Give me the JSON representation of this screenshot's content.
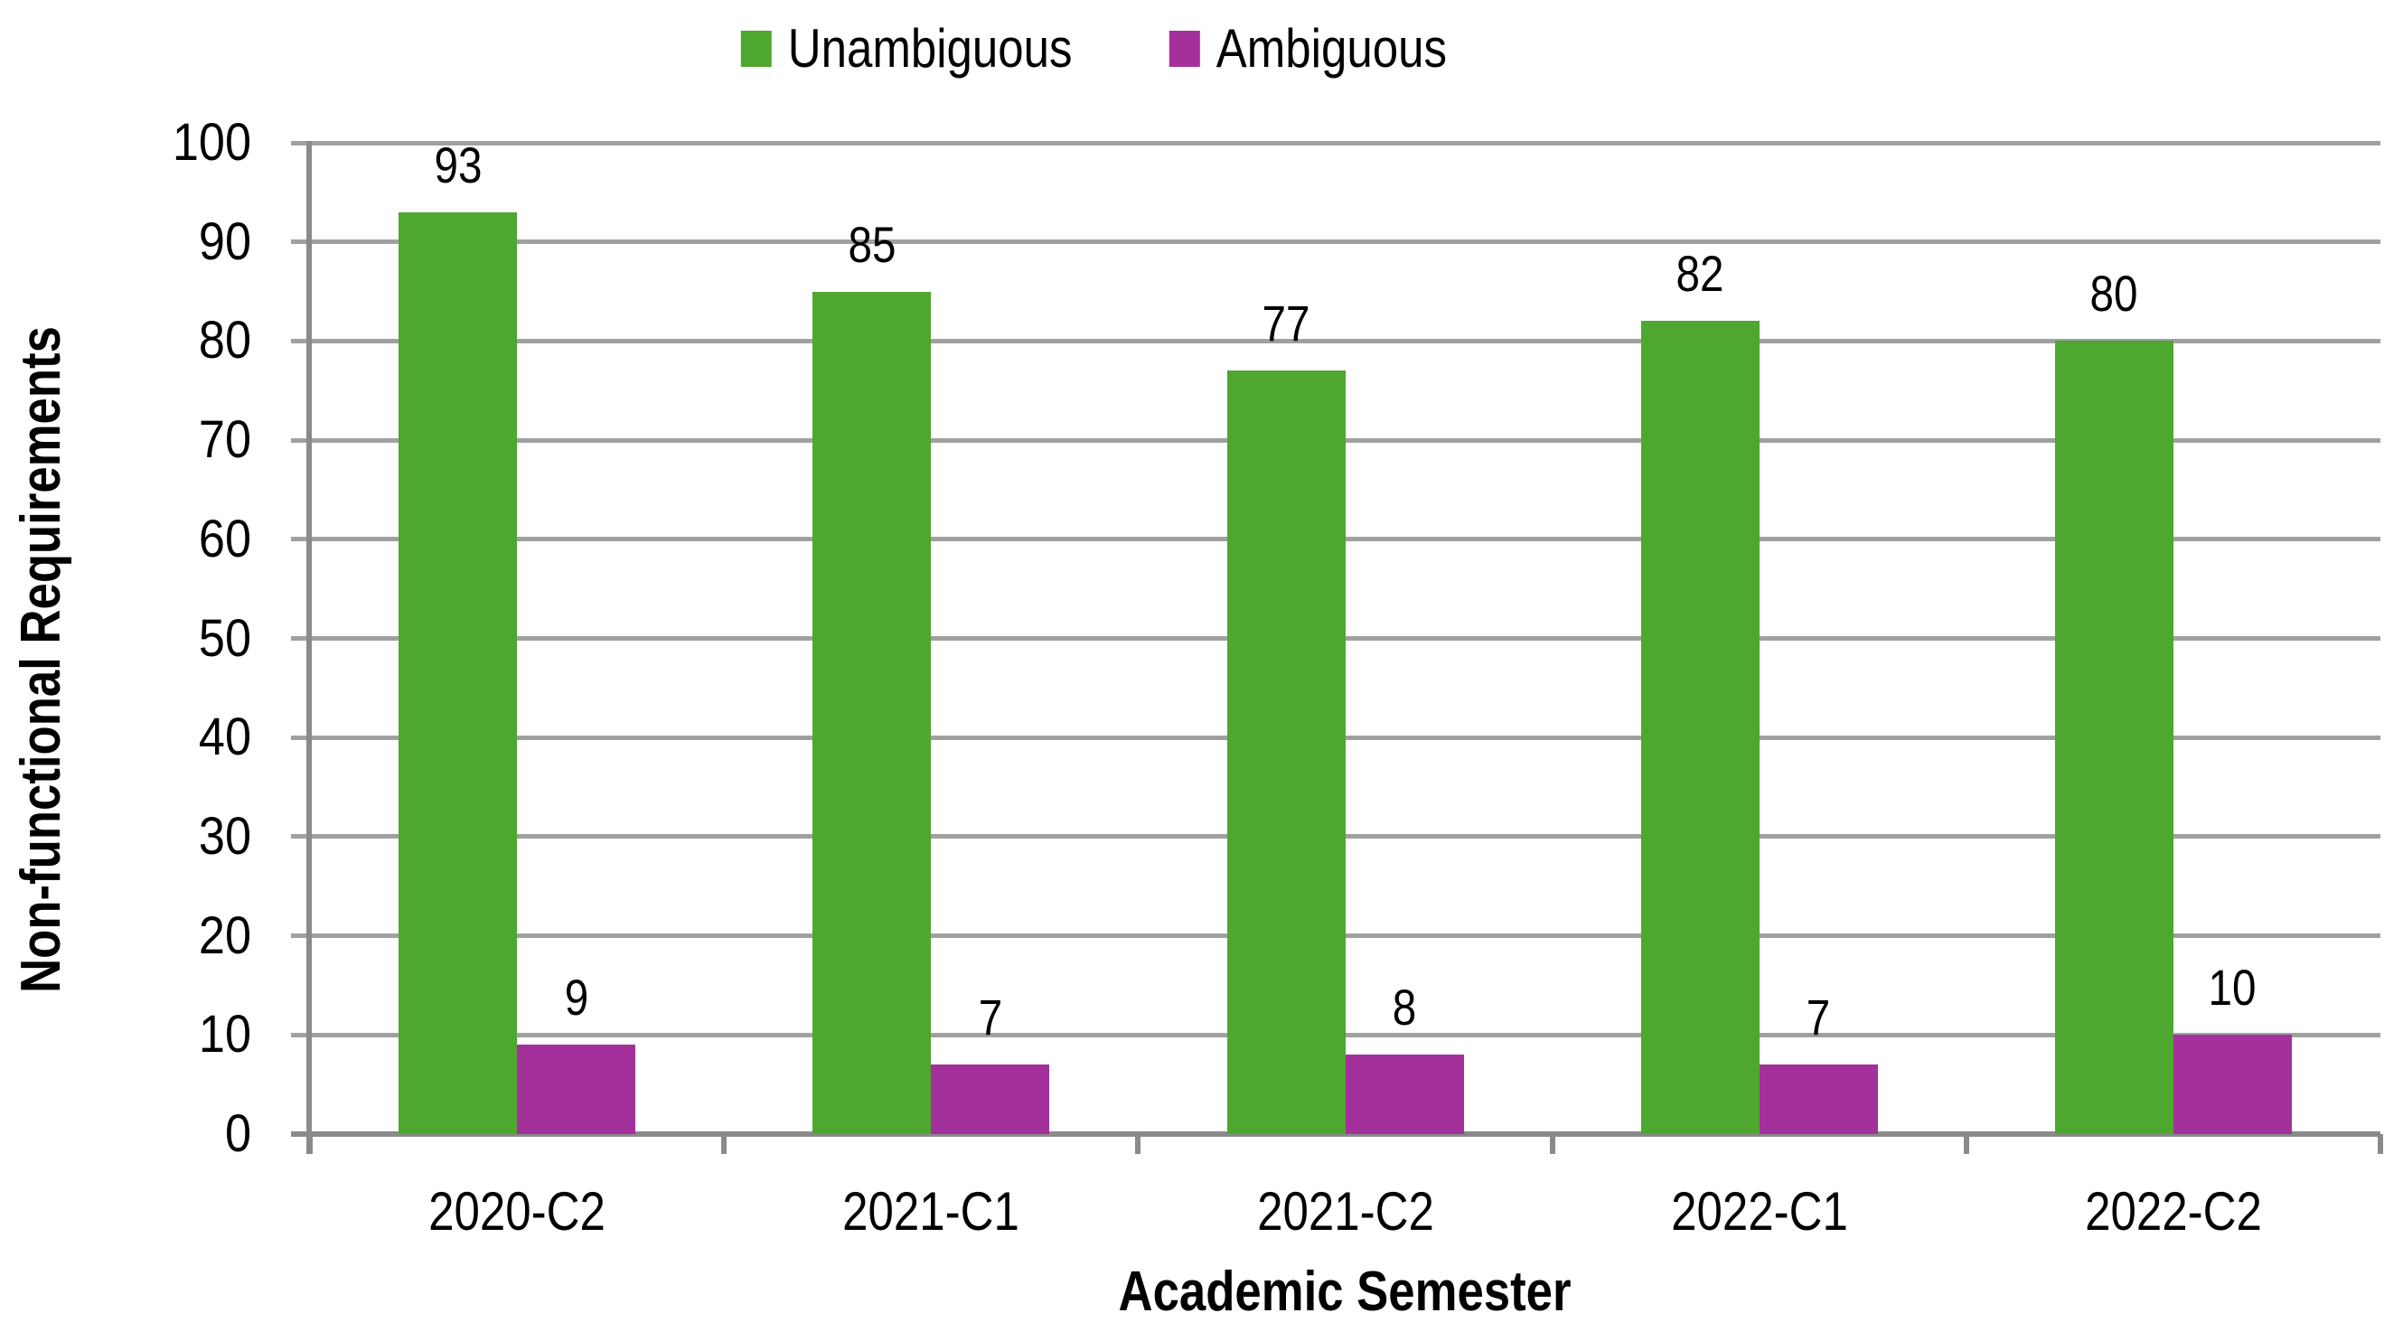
{
  "chart_data": {
    "type": "bar",
    "title": "",
    "categories": [
      "2020-C2",
      "2021-C1",
      "2021-C2",
      "2022-C1",
      "2022-C2"
    ],
    "series": [
      {
        "name": "Unambiguous",
        "color": "#4EA72E",
        "values": [
          93,
          85,
          77,
          82,
          80
        ]
      },
      {
        "name": "Ambiguous",
        "color": "#A3309B",
        "values": [
          9,
          7,
          8,
          7,
          10
        ]
      }
    ],
    "data_labels": [
      [
        "93",
        "85",
        "77",
        "82",
        "80"
      ],
      [
        "9",
        "7",
        "8",
        "7",
        "10"
      ]
    ],
    "xlabel": "Academic Semester",
    "ylabel": "Non-functional Requirements",
    "ylim": [
      0,
      100
    ],
    "ytick_step": 10,
    "ytick_labels": [
      "0",
      "10",
      "20",
      "30",
      "40",
      "50",
      "60",
      "70",
      "80",
      "90",
      "100"
    ],
    "grid": true,
    "legend_position": "top",
    "gridline_color": "#A0A0A0",
    "axis_color": "#8A8A8A",
    "text_color": "#000000",
    "background": "#FFFFFF"
  }
}
